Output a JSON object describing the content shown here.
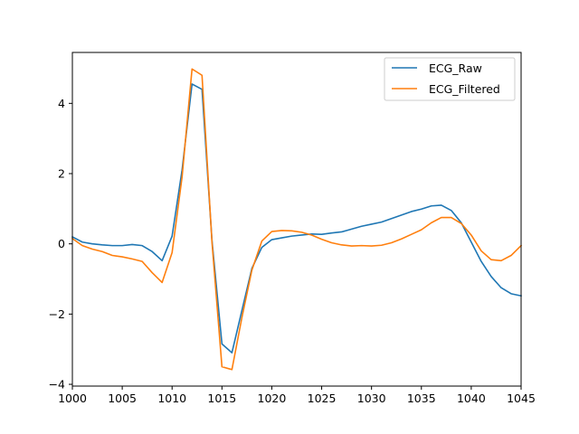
{
  "chart_data": {
    "type": "line",
    "title": "",
    "xlabel": "",
    "ylabel": "",
    "xlim": [
      1000,
      1045
    ],
    "ylim": [
      -4.05,
      5.45
    ],
    "grid": false,
    "legend_position": "top-right",
    "x_ticks": [
      1000,
      1005,
      1010,
      1015,
      1020,
      1025,
      1030,
      1035,
      1040,
      1045
    ],
    "y_ticks": [
      -4,
      -2,
      0,
      2,
      4
    ],
    "y_tick_labels": [
      "−4",
      "−2",
      "0",
      "2",
      "4"
    ],
    "x": [
      1000,
      1001,
      1002,
      1003,
      1004,
      1005,
      1006,
      1007,
      1008,
      1009,
      1010,
      1011,
      1012,
      1013,
      1014,
      1015,
      1016,
      1017,
      1018,
      1019,
      1020,
      1021,
      1022,
      1023,
      1024,
      1025,
      1026,
      1027,
      1028,
      1029,
      1030,
      1031,
      1032,
      1033,
      1034,
      1035,
      1036,
      1037,
      1038,
      1039,
      1040,
      1041,
      1042,
      1043,
      1044,
      1045
    ],
    "series": [
      {
        "name": "ECG_Raw",
        "color": "#1f77b4",
        "values": [
          0.2,
          0.05,
          0.0,
          -0.03,
          -0.05,
          -0.05,
          -0.02,
          -0.05,
          -0.22,
          -0.48,
          0.22,
          2.1,
          4.55,
          4.4,
          0.1,
          -2.85,
          -3.1,
          -1.9,
          -0.7,
          -0.1,
          0.12,
          0.17,
          0.22,
          0.25,
          0.28,
          0.27,
          0.31,
          0.34,
          0.42,
          0.5,
          0.56,
          0.62,
          0.72,
          0.82,
          0.92,
          0.99,
          1.08,
          1.1,
          0.95,
          0.6,
          0.05,
          -0.5,
          -0.93,
          -1.25,
          -1.42,
          -1.48
        ]
      },
      {
        "name": "ECG_Filtered",
        "color": "#ff7f0e",
        "values": [
          0.15,
          -0.05,
          -0.15,
          -0.22,
          -0.33,
          -0.37,
          -0.43,
          -0.5,
          -0.82,
          -1.1,
          -0.25,
          1.9,
          4.98,
          4.8,
          0.05,
          -3.5,
          -3.58,
          -2.1,
          -0.75,
          0.08,
          0.35,
          0.38,
          0.37,
          0.33,
          0.25,
          0.13,
          0.03,
          -0.03,
          -0.06,
          -0.05,
          -0.06,
          -0.04,
          0.03,
          0.14,
          0.27,
          0.4,
          0.6,
          0.75,
          0.75,
          0.58,
          0.25,
          -0.2,
          -0.45,
          -0.48,
          -0.33,
          -0.05
        ]
      }
    ]
  }
}
